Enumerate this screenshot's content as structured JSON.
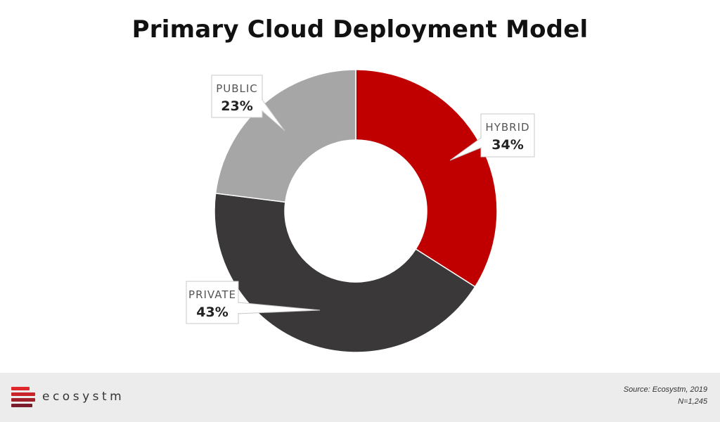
{
  "title": "Primary Cloud Deployment Model",
  "chart_data": {
    "type": "pie",
    "donut": true,
    "start": "top",
    "direction": "clockwise",
    "slices": [
      {
        "label": "HYBRID",
        "value": 34,
        "value_label": "34%",
        "color": "#c00000"
      },
      {
        "label": "PRIVATE",
        "value": 43,
        "value_label": "43%",
        "color": "#3b383a"
      },
      {
        "label": "PUBLIC",
        "value": 23,
        "value_label": "23%",
        "color": "#a6a6a6"
      }
    ],
    "legend": "none"
  },
  "footer": {
    "brand": "ecosystm",
    "source": "Source: Ecosystm, 2019",
    "sample": "N=1,245",
    "logo_colors": [
      "#e0272b",
      "#c8242a",
      "#a3202b",
      "#7a1c2b"
    ]
  }
}
